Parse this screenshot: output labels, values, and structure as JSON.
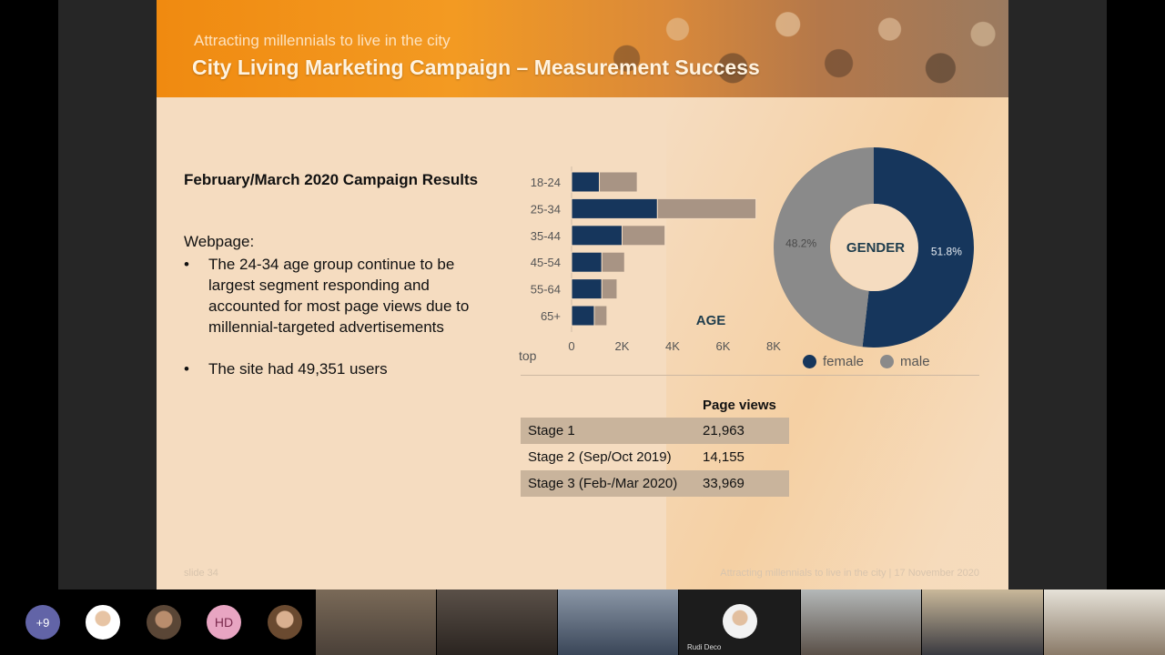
{
  "banner": {
    "subtitle": "Attracting millennials to live in the city",
    "title": "City Living Marketing Campaign – Measurement Success"
  },
  "content": {
    "results_title": "February/March 2020 Campaign Results",
    "webpage_label": "Webpage:",
    "bullets": [
      "The 24-34 age group continue to be largest segment responding and accounted for most page views due to millennial-targeted advertisements",
      "The site had 49,351 users"
    ],
    "bullet_char": "•"
  },
  "chart_data": [
    {
      "type": "bar",
      "orientation": "horizontal",
      "stacked": true,
      "title": "AGE",
      "categories": [
        "18-24",
        "25-34",
        "35-44",
        "45-54",
        "55-64",
        "65+"
      ],
      "series": [
        {
          "name": "female",
          "color": "#16365c",
          "values": [
            1100,
            3400,
            2000,
            1200,
            1200,
            900
          ]
        },
        {
          "name": "male",
          "color": "#a89484",
          "values": [
            1500,
            3900,
            1700,
            900,
            600,
            500
          ]
        }
      ],
      "x_ticks": [
        "0",
        "2K",
        "4K",
        "6K",
        "8K"
      ],
      "xlim": [
        0,
        8000
      ],
      "corner_label": "top"
    },
    {
      "type": "pie",
      "donut": true,
      "title": "GENDER",
      "slices": [
        {
          "name": "female",
          "value": 51.8,
          "label": "51.8%",
          "color": "#16365c"
        },
        {
          "name": "male",
          "value": 48.2,
          "label": "48.2%",
          "color": "#8a8a8a"
        }
      ],
      "legend": "bottom-right"
    }
  ],
  "legend": [
    {
      "label": "female",
      "color": "#16365c"
    },
    {
      "label": "male",
      "color": "#8a8a8a"
    }
  ],
  "page_views": {
    "header": "Page views",
    "rows": [
      {
        "stage": "Stage 1",
        "views": "21,963"
      },
      {
        "stage": "Stage 2 (Sep/Oct 2019)",
        "views": "14,155"
      },
      {
        "stage": "Stage 3 (Feb-/Mar 2020)",
        "views": "33,969"
      }
    ]
  },
  "footer": {
    "slide": "slide 34",
    "right": "Attracting millennials to live in the city | 17 November 2020"
  },
  "participants": {
    "more": "+9",
    "initials": "HD",
    "named_tile": "Rudi Deco"
  }
}
